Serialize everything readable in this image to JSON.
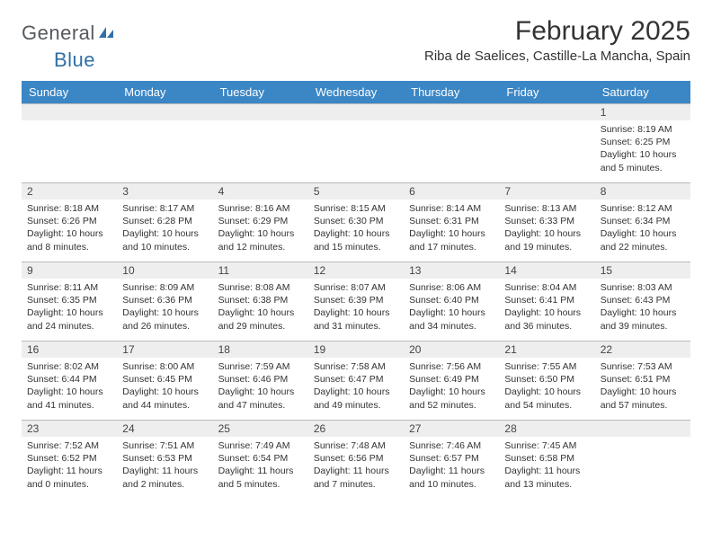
{
  "logo": {
    "text1": "General",
    "text2": "Blue"
  },
  "title": "February 2025",
  "location": "Riba de Saelices, Castille-La Mancha, Spain",
  "colors": {
    "header_bg": "#3b86c5",
    "header_fg": "#ffffff",
    "daynum_bg": "#eeeeee",
    "rule": "#b9b9b9",
    "text": "#333333",
    "logo_gray": "#555a5f",
    "logo_blue": "#2f6fa8"
  },
  "day_headers": [
    "Sunday",
    "Monday",
    "Tuesday",
    "Wednesday",
    "Thursday",
    "Friday",
    "Saturday"
  ],
  "weeks": [
    [
      null,
      null,
      null,
      null,
      null,
      null,
      {
        "n": "1",
        "sr": "8:19 AM",
        "ss": "6:25 PM",
        "dl": "10 hours and 5 minutes."
      }
    ],
    [
      {
        "n": "2",
        "sr": "8:18 AM",
        "ss": "6:26 PM",
        "dl": "10 hours and 8 minutes."
      },
      {
        "n": "3",
        "sr": "8:17 AM",
        "ss": "6:28 PM",
        "dl": "10 hours and 10 minutes."
      },
      {
        "n": "4",
        "sr": "8:16 AM",
        "ss": "6:29 PM",
        "dl": "10 hours and 12 minutes."
      },
      {
        "n": "5",
        "sr": "8:15 AM",
        "ss": "6:30 PM",
        "dl": "10 hours and 15 minutes."
      },
      {
        "n": "6",
        "sr": "8:14 AM",
        "ss": "6:31 PM",
        "dl": "10 hours and 17 minutes."
      },
      {
        "n": "7",
        "sr": "8:13 AM",
        "ss": "6:33 PM",
        "dl": "10 hours and 19 minutes."
      },
      {
        "n": "8",
        "sr": "8:12 AM",
        "ss": "6:34 PM",
        "dl": "10 hours and 22 minutes."
      }
    ],
    [
      {
        "n": "9",
        "sr": "8:11 AM",
        "ss": "6:35 PM",
        "dl": "10 hours and 24 minutes."
      },
      {
        "n": "10",
        "sr": "8:09 AM",
        "ss": "6:36 PM",
        "dl": "10 hours and 26 minutes."
      },
      {
        "n": "11",
        "sr": "8:08 AM",
        "ss": "6:38 PM",
        "dl": "10 hours and 29 minutes."
      },
      {
        "n": "12",
        "sr": "8:07 AM",
        "ss": "6:39 PM",
        "dl": "10 hours and 31 minutes."
      },
      {
        "n": "13",
        "sr": "8:06 AM",
        "ss": "6:40 PM",
        "dl": "10 hours and 34 minutes."
      },
      {
        "n": "14",
        "sr": "8:04 AM",
        "ss": "6:41 PM",
        "dl": "10 hours and 36 minutes."
      },
      {
        "n": "15",
        "sr": "8:03 AM",
        "ss": "6:43 PM",
        "dl": "10 hours and 39 minutes."
      }
    ],
    [
      {
        "n": "16",
        "sr": "8:02 AM",
        "ss": "6:44 PM",
        "dl": "10 hours and 41 minutes."
      },
      {
        "n": "17",
        "sr": "8:00 AM",
        "ss": "6:45 PM",
        "dl": "10 hours and 44 minutes."
      },
      {
        "n": "18",
        "sr": "7:59 AM",
        "ss": "6:46 PM",
        "dl": "10 hours and 47 minutes."
      },
      {
        "n": "19",
        "sr": "7:58 AM",
        "ss": "6:47 PM",
        "dl": "10 hours and 49 minutes."
      },
      {
        "n": "20",
        "sr": "7:56 AM",
        "ss": "6:49 PM",
        "dl": "10 hours and 52 minutes."
      },
      {
        "n": "21",
        "sr": "7:55 AM",
        "ss": "6:50 PM",
        "dl": "10 hours and 54 minutes."
      },
      {
        "n": "22",
        "sr": "7:53 AM",
        "ss": "6:51 PM",
        "dl": "10 hours and 57 minutes."
      }
    ],
    [
      {
        "n": "23",
        "sr": "7:52 AM",
        "ss": "6:52 PM",
        "dl": "11 hours and 0 minutes."
      },
      {
        "n": "24",
        "sr": "7:51 AM",
        "ss": "6:53 PM",
        "dl": "11 hours and 2 minutes."
      },
      {
        "n": "25",
        "sr": "7:49 AM",
        "ss": "6:54 PM",
        "dl": "11 hours and 5 minutes."
      },
      {
        "n": "26",
        "sr": "7:48 AM",
        "ss": "6:56 PM",
        "dl": "11 hours and 7 minutes."
      },
      {
        "n": "27",
        "sr": "7:46 AM",
        "ss": "6:57 PM",
        "dl": "11 hours and 10 minutes."
      },
      {
        "n": "28",
        "sr": "7:45 AM",
        "ss": "6:58 PM",
        "dl": "11 hours and 13 minutes."
      },
      null
    ]
  ],
  "labels": {
    "sunrise": "Sunrise:",
    "sunset": "Sunset:",
    "daylight": "Daylight:"
  }
}
